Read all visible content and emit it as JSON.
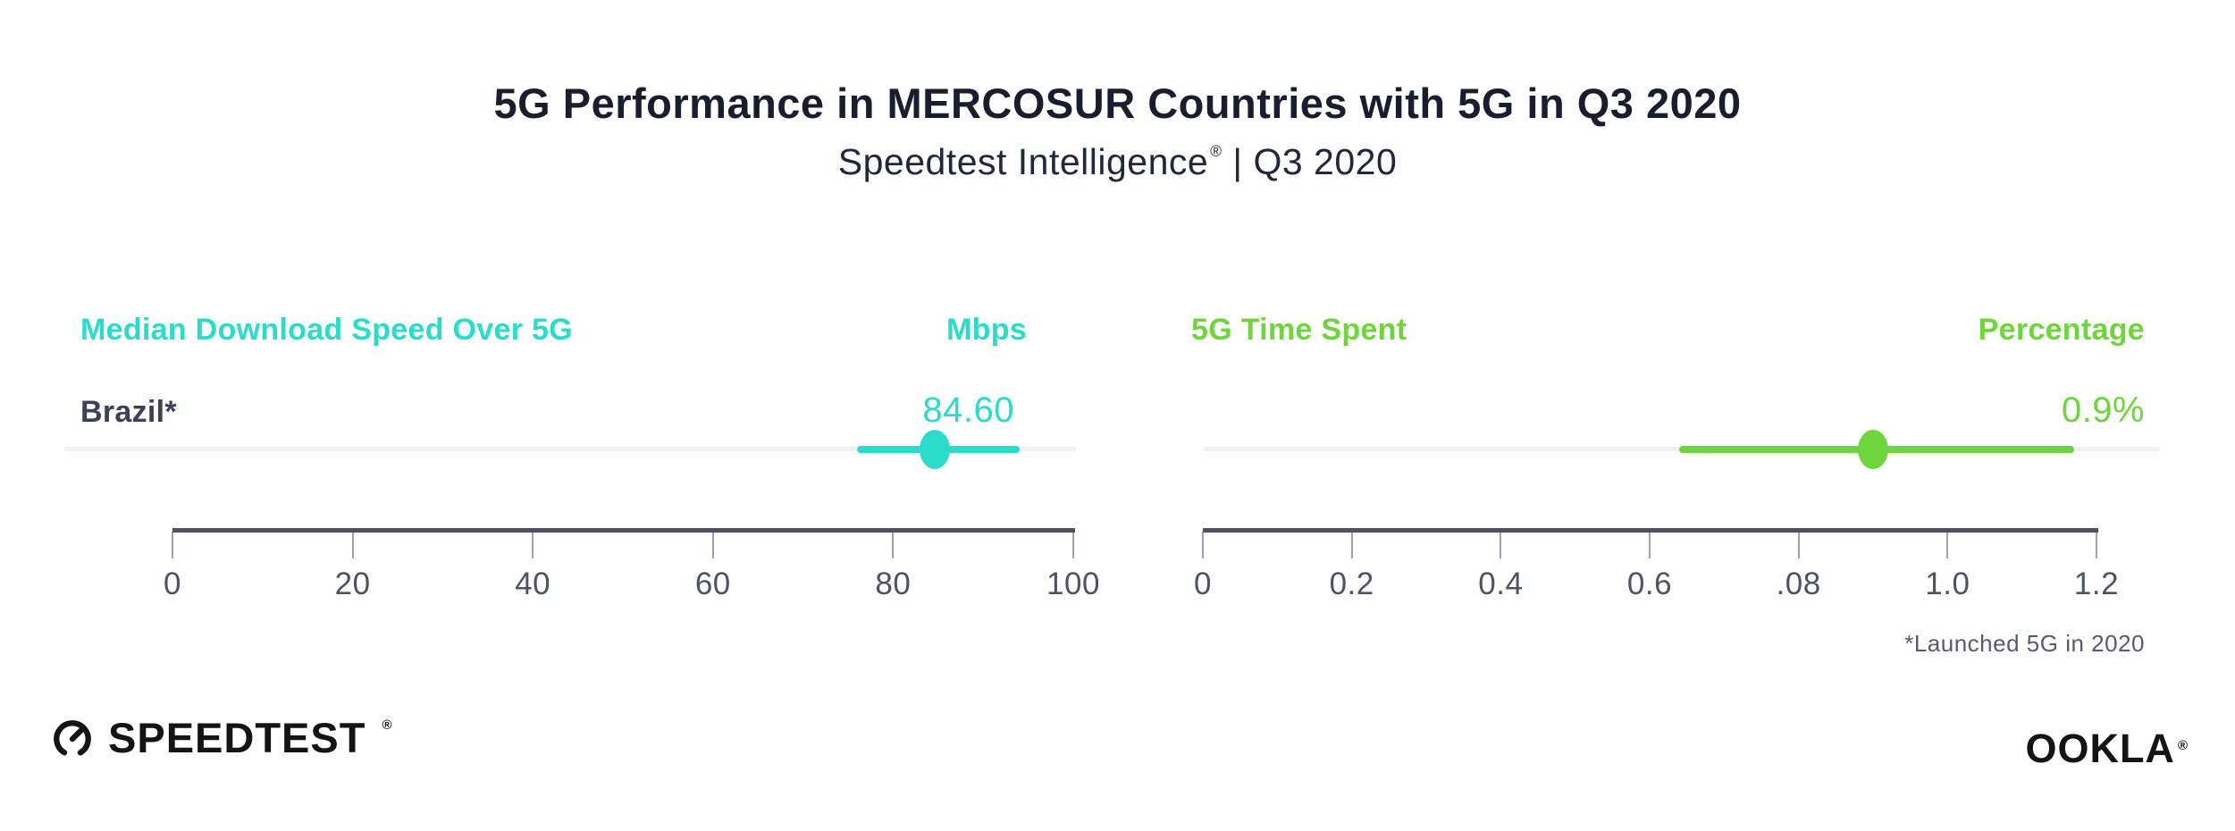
{
  "header": {
    "title": "5G Performance in MERCOSUR Countries with 5G in Q3 2020",
    "subtitle_brand": "Speedtest Intelligence",
    "subtitle_registered": "®",
    "subtitle_rest": "| Q3 2020"
  },
  "footnote": "*Launched 5G in 2020",
  "branding": {
    "speedtest_wordmark": "SPEEDTEST",
    "speedtest_registered": "®",
    "ookla_wordmark": "OOKLA",
    "ookla_registered": "®"
  },
  "colors": {
    "teal_accent": "#2bdccb",
    "green_accent": "#6fd53c",
    "title_text": "#1a1d2e",
    "country_text": "#3c4155",
    "axis_text": "#4d5265",
    "tick_line": "#9b9fae",
    "row_line": "#eef0f3",
    "footnote_text": "#565b6e",
    "logo_black": "#141414"
  },
  "chart_data": [
    {
      "type": "scatter",
      "title": "Median Download Speed Over 5G",
      "unit_label": "Mbps",
      "categories": [
        "Brazil*"
      ],
      "values": [
        84.6
      ],
      "value_labels": [
        "84.60"
      ],
      "ci": [
        [
          76.0,
          94.0
        ]
      ],
      "xlim": [
        0,
        100
      ],
      "xticks": [
        "0",
        "20",
        "40",
        "60",
        "80",
        "100"
      ],
      "grid": false,
      "accent": "#2bdccb"
    },
    {
      "type": "scatter",
      "title": "5G Time Spent",
      "unit_label": "Percentage",
      "categories": [
        "Brazil*"
      ],
      "values": [
        0.9
      ],
      "value_labels": [
        "0.9%"
      ],
      "ci": [
        [
          0.64,
          1.17
        ]
      ],
      "xlim": [
        0,
        1.2
      ],
      "xticks": [
        "0",
        "0.2",
        "0.4",
        "0.6",
        ".08",
        "1.0",
        "1.2"
      ],
      "grid": false,
      "accent": "#6fd53c"
    }
  ]
}
